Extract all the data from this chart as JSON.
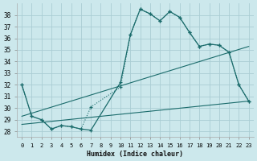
{
  "xlabel": "Humidex (Indice chaleur)",
  "background_color": "#cce8ec",
  "grid_color": "#aacdd4",
  "line_color": "#1a6b6b",
  "xlim": [
    -0.5,
    23.5
  ],
  "ylim": [
    27.5,
    39.0
  ],
  "yticks": [
    28,
    29,
    30,
    31,
    32,
    33,
    34,
    35,
    36,
    37,
    38
  ],
  "xticks": [
    0,
    1,
    2,
    3,
    4,
    5,
    6,
    7,
    8,
    9,
    10,
    11,
    12,
    13,
    14,
    15,
    16,
    17,
    18,
    19,
    20,
    21,
    22,
    23
  ],
  "curve_solid_x": [
    0,
    1,
    2,
    3,
    4,
    5,
    6,
    7,
    10,
    11,
    12,
    13,
    14,
    15,
    16,
    17,
    18,
    19,
    20,
    21,
    22,
    23
  ],
  "curve_solid_y": [
    32.0,
    29.3,
    29.0,
    28.2,
    28.5,
    28.4,
    28.2,
    28.1,
    32.2,
    36.3,
    38.5,
    38.1,
    37.5,
    38.3,
    37.8,
    36.5,
    35.3,
    35.5,
    35.4,
    34.8,
    32.0,
    30.6
  ],
  "curve_dotted_x": [
    0,
    1,
    2,
    3,
    4,
    5,
    6,
    7,
    10,
    11,
    12,
    13,
    14,
    15,
    16,
    17,
    18,
    19,
    20,
    21,
    22,
    23
  ],
  "curve_dotted_y": [
    32.0,
    29.3,
    29.0,
    28.2,
    28.5,
    28.4,
    28.2,
    30.1,
    31.8,
    36.3,
    38.5,
    38.1,
    37.5,
    38.3,
    37.8,
    36.5,
    35.3,
    35.5,
    35.4,
    34.8,
    32.0,
    30.6
  ],
  "line1_x": [
    0,
    23
  ],
  "line1_y": [
    28.6,
    30.6
  ],
  "line2_x": [
    0,
    23
  ],
  "line2_y": [
    29.3,
    35.3
  ]
}
